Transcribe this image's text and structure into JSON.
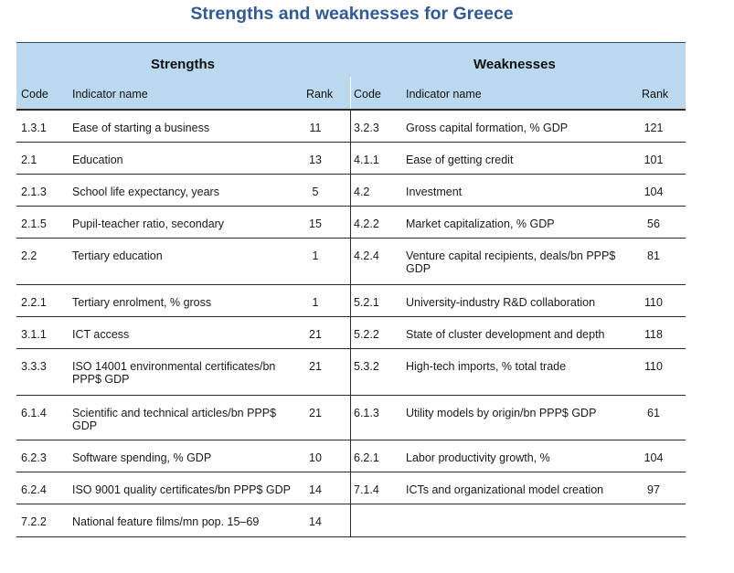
{
  "title": "Strengths and weaknesses for Greece",
  "strengths_header": "Strengths",
  "weaknesses_header": "Weaknesses",
  "columns": {
    "code": "Code",
    "name": "Indicator name",
    "rank": "Rank"
  },
  "rows": [
    {
      "s_code": "1.3.1",
      "s_name": "Ease of starting a business",
      "s_rank": "11",
      "w_code": "3.2.3",
      "w_name": "Gross capital formation, % GDP",
      "w_rank": "121"
    },
    {
      "s_code": "2.1",
      "s_name": "Education",
      "s_rank": "13",
      "w_code": "4.1.1",
      "w_name": "Ease of getting credit",
      "w_rank": "101"
    },
    {
      "s_code": "2.1.3",
      "s_name": "School life expectancy, years",
      "s_rank": "5",
      "w_code": "4.2",
      "w_name": "Investment",
      "w_rank": "104"
    },
    {
      "s_code": "2.1.5",
      "s_name": "Pupil-teacher ratio, secondary",
      "s_rank": "15",
      "w_code": "4.2.2",
      "w_name": "Market capitalization, % GDP",
      "w_rank": "56"
    },
    {
      "s_code": "2.2",
      "s_name": "Tertiary education",
      "s_rank": "1",
      "w_code": "4.2.4",
      "w_name": "Venture capital recipients, deals/bn PPP$ GDP",
      "w_rank": "81"
    },
    {
      "s_code": "2.2.1",
      "s_name": "Tertiary enrolment, % gross",
      "s_rank": "1",
      "w_code": "5.2.1",
      "w_name": "University-industry R&D collaboration",
      "w_rank": "110"
    },
    {
      "s_code": "3.1.1",
      "s_name": "ICT access",
      "s_rank": "21",
      "w_code": "5.2.2",
      "w_name": "State of cluster development and depth",
      "w_rank": "118"
    },
    {
      "s_code": "3.3.3",
      "s_name": "ISO 14001 environmental certificates/bn PPP$ GDP",
      "s_rank": "21",
      "w_code": "5.3.2",
      "w_name": "High-tech imports, % total trade",
      "w_rank": "110"
    },
    {
      "s_code": "6.1.4",
      "s_name": "Scientific and technical articles/bn PPP$ GDP",
      "s_rank": "21",
      "w_code": "6.1.3",
      "w_name": "Utility models by origin/bn PPP$ GDP",
      "w_rank": "61"
    },
    {
      "s_code": "6.2.3",
      "s_name": "Software spending, % GDP",
      "s_rank": "10",
      "w_code": "6.2.1",
      "w_name": "Labor productivity growth, %",
      "w_rank": "104"
    },
    {
      "s_code": "6.2.4",
      "s_name": "ISO 9001 quality certificates/bn PPP$ GDP",
      "s_rank": "14",
      "w_code": "7.1.4",
      "w_name": "ICTs and organizational model creation",
      "w_rank": "97"
    },
    {
      "s_code": "7.2.2",
      "s_name": "National feature films/mn pop. 15–69",
      "s_rank": "14",
      "w_code": "",
      "w_name": "",
      "w_rank": ""
    }
  ]
}
